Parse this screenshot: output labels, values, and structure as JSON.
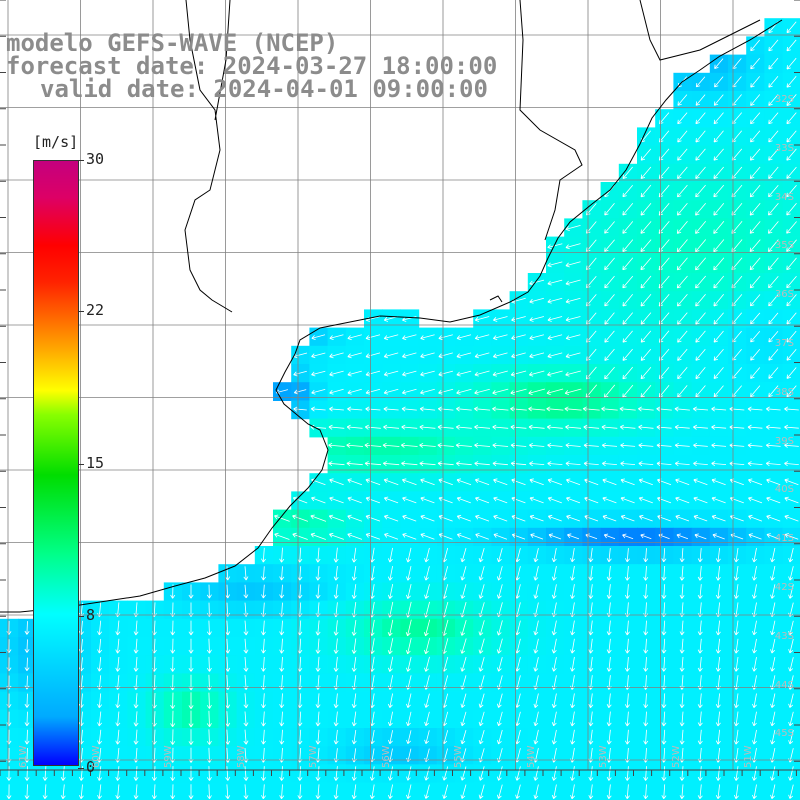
{
  "title": {
    "line1": "modelo GEFS-WAVE (NCEP)",
    "line2": "forecast date: 2024-03-27 18:00:00",
    "line3": "valid date: 2024-04-01 09:00:00"
  },
  "colorbar": {
    "unit": "[m/s]",
    "ticks": [
      "30",
      "22",
      "15",
      "8",
      "0"
    ],
    "colors": [
      "#0000ff",
      "#00aaff",
      "#00ffff",
      "#00ff88",
      "#00dd00",
      "#ffff00",
      "#ff9900",
      "#ff0000",
      "#c4007e"
    ]
  },
  "map": {
    "lat_labels": [
      "32S",
      "33S",
      "34S",
      "35S",
      "36S",
      "37S",
      "38S",
      "39S",
      "40S",
      "41S",
      "42S",
      "43S",
      "44S",
      "45S"
    ],
    "lon_labels": [
      "61W",
      "60W",
      "59W",
      "58W",
      "57W",
      "56W",
      "55W",
      "54W",
      "53W",
      "52W",
      "51W"
    ],
    "coastline_color": "#000000",
    "grid_color": "#808080",
    "arrow_color": "#ffffff"
  }
}
